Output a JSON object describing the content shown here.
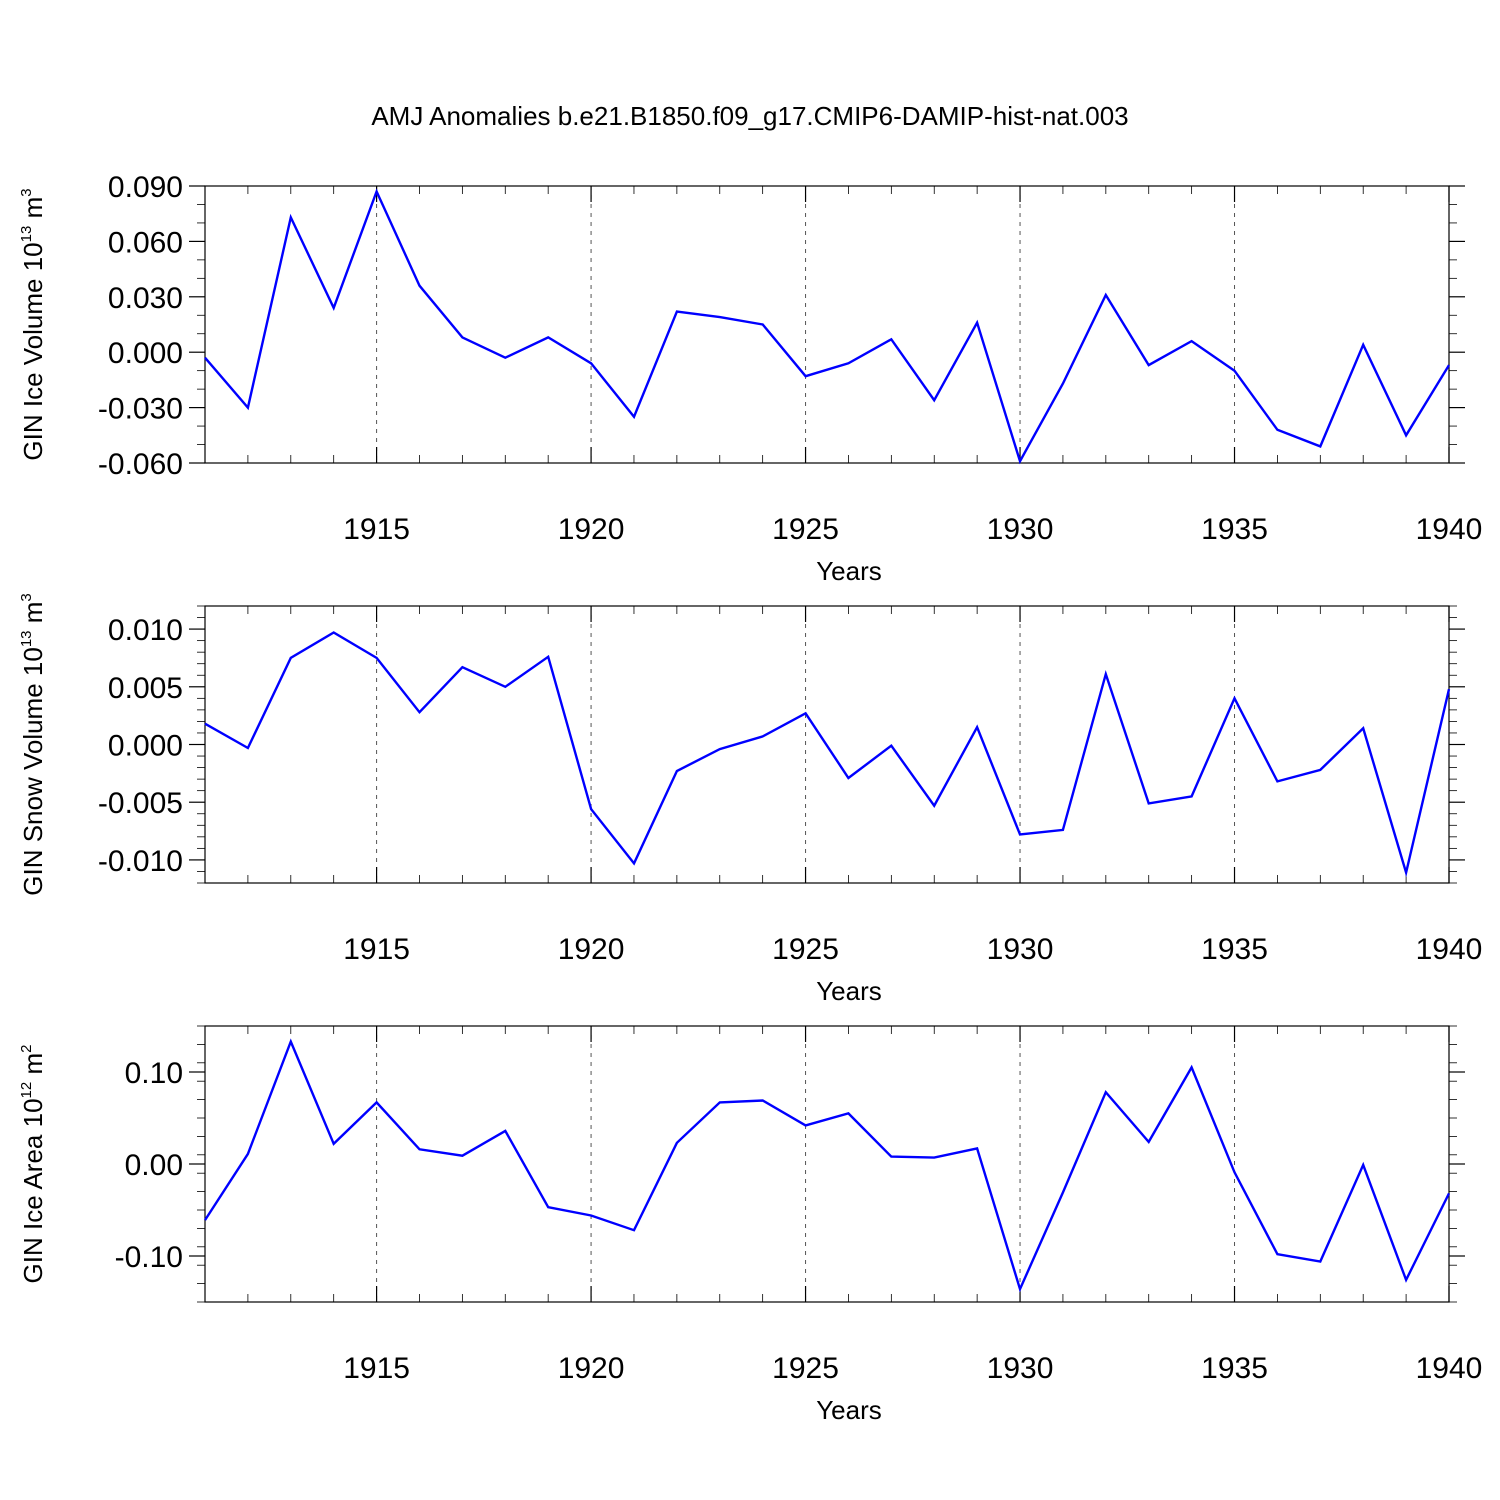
{
  "title": "AMJ Anomalies b.e21.B1850.f09_g17.CMIP6-DAMIP-hist-nat.003",
  "line_color": "#0000ff",
  "chart_data": [
    {
      "type": "line",
      "ylabel_main": "GIN Ice Volume 10",
      "ylabel_exp": "13",
      "ylabel_unit": " m",
      "ylabel_unit_exp": "3",
      "xlabel": "Years",
      "xlim": [
        1911,
        1940
      ],
      "ylim": [
        -0.06,
        0.09
      ],
      "xticks": [
        1915,
        1920,
        1925,
        1930,
        1935,
        1940
      ],
      "xtick_labels": [
        "1915",
        "1920",
        "1925",
        "1930",
        "1935",
        "1940"
      ],
      "yticks": [
        -0.06,
        -0.03,
        0.0,
        0.03,
        0.06,
        0.09
      ],
      "ytick_labels": [
        "-0.060",
        "-0.030",
        "0.000",
        "0.030",
        "0.060",
        "0.090"
      ],
      "yminor_step": 0.01,
      "x": [
        1911,
        1912,
        1913,
        1914,
        1915,
        1916,
        1917,
        1918,
        1919,
        1920,
        1921,
        1922,
        1923,
        1924,
        1925,
        1926,
        1927,
        1928,
        1929,
        1930,
        1931,
        1932,
        1933,
        1934,
        1935,
        1936,
        1937,
        1938,
        1939,
        1940
      ],
      "values": [
        -0.003,
        -0.03,
        0.073,
        0.024,
        0.087,
        0.036,
        0.008,
        -0.003,
        0.008,
        -0.006,
        -0.035,
        0.022,
        0.019,
        0.015,
        -0.013,
        -0.006,
        0.007,
        -0.026,
        0.016,
        -0.059,
        -0.017,
        0.031,
        -0.007,
        0.006,
        -0.01,
        -0.042,
        -0.051,
        0.004,
        -0.045,
        -0.007
      ]
    },
    {
      "type": "line",
      "ylabel_main": "GIN Snow Volume 10",
      "ylabel_exp": "13",
      "ylabel_unit": " m",
      "ylabel_unit_exp": "3",
      "xlabel": "Years",
      "xlim": [
        1911,
        1940
      ],
      "ylim": [
        -0.012,
        0.012
      ],
      "xticks": [
        1915,
        1920,
        1925,
        1930,
        1935,
        1940
      ],
      "xtick_labels": [
        "1915",
        "1920",
        "1925",
        "1930",
        "1935",
        "1940"
      ],
      "yticks": [
        -0.01,
        -0.005,
        0.0,
        0.005,
        0.01
      ],
      "ytick_labels": [
        "-0.010",
        "-0.005",
        "0.000",
        "0.005",
        "0.010"
      ],
      "yminor_step": 0.001,
      "x": [
        1911,
        1912,
        1913,
        1914,
        1915,
        1916,
        1917,
        1918,
        1919,
        1920,
        1921,
        1922,
        1923,
        1924,
        1925,
        1926,
        1927,
        1928,
        1929,
        1930,
        1931,
        1932,
        1933,
        1934,
        1935,
        1936,
        1937,
        1938,
        1939,
        1940
      ],
      "values": [
        0.0018,
        -0.0003,
        0.0075,
        0.0097,
        0.0075,
        0.0028,
        0.0067,
        0.005,
        0.0076,
        -0.0056,
        -0.0103,
        -0.0023,
        -0.0004,
        0.0007,
        0.0027,
        -0.0029,
        -0.0001,
        -0.0053,
        0.0015,
        -0.0078,
        -0.0074,
        0.0061,
        -0.0051,
        -0.0045,
        0.004,
        -0.0032,
        -0.0022,
        0.0014,
        -0.0111,
        0.0048
      ]
    },
    {
      "type": "line",
      "ylabel_main": "GIN Ice Area 10",
      "ylabel_exp": "12",
      "ylabel_unit": " m",
      "ylabel_unit_exp": "2",
      "xlabel": "Years",
      "xlim": [
        1911,
        1940
      ],
      "ylim": [
        -0.15,
        0.15
      ],
      "xticks": [
        1915,
        1920,
        1925,
        1930,
        1935,
        1940
      ],
      "xtick_labels": [
        "1915",
        "1920",
        "1925",
        "1930",
        "1935",
        "1940"
      ],
      "yticks": [
        -0.1,
        0.0,
        0.1
      ],
      "ytick_labels": [
        "-0.10",
        "0.00",
        "0.10"
      ],
      "yminor_step": 0.02,
      "x": [
        1911,
        1912,
        1913,
        1914,
        1915,
        1916,
        1917,
        1918,
        1919,
        1920,
        1921,
        1922,
        1923,
        1924,
        1925,
        1926,
        1927,
        1928,
        1929,
        1930,
        1931,
        1932,
        1933,
        1934,
        1935,
        1936,
        1937,
        1938,
        1939,
        1940
      ],
      "values": [
        -0.061,
        0.011,
        0.133,
        0.022,
        0.067,
        0.016,
        0.009,
        0.036,
        -0.047,
        -0.056,
        -0.072,
        0.023,
        0.067,
        0.069,
        0.042,
        0.055,
        0.008,
        0.007,
        0.017,
        -0.136,
        -0.031,
        0.078,
        0.024,
        0.105,
        -0.009,
        -0.098,
        -0.106,
        -0.001,
        -0.126,
        -0.032
      ]
    }
  ]
}
